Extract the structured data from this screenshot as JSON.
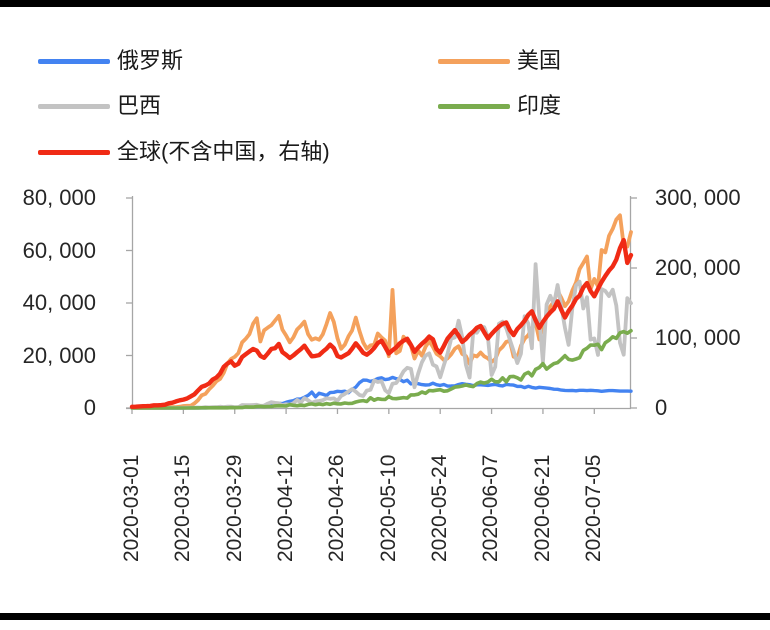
{
  "legend": {
    "items": [
      {
        "label": "俄罗斯",
        "color": "#4383F1"
      },
      {
        "label": "美国",
        "color": "#F4A15C"
      },
      {
        "label": "巴西",
        "color": "#C3C3C3"
      },
      {
        "label": "印度",
        "color": "#7AAC4E"
      },
      {
        "label": "全球(不含中国，右轴)",
        "color": "#F02B15"
      }
    ]
  },
  "chart_data": {
    "type": "line",
    "title": "",
    "grid": false,
    "legend_position": "top-left, two columns",
    "x_start_date": "2020-03-01",
    "x_end_date": "2020-07-15",
    "x_frequency": "daily",
    "x_tick_interval_days": 14,
    "x_tick_labels": [
      "2020-03-01",
      "2020-03-15",
      "2020-03-29",
      "2020-04-12",
      "2020-04-26",
      "2020-05-10",
      "2020-05-24",
      "2020-06-07",
      "2020-06-21",
      "2020-07-05"
    ],
    "y_axis_left": {
      "min": 0,
      "max": 80000,
      "tick_labels": [
        "0",
        "20, 000",
        "40, 000",
        "60, 000",
        "80, 000"
      ]
    },
    "y_axis_right": {
      "min": 0,
      "max": 300000,
      "tick_labels": [
        "0",
        "100, 000",
        "200, 000",
        "300, 000"
      ]
    },
    "series": [
      {
        "name": "俄罗斯",
        "axis": "left",
        "color": "#4383F1",
        "values": [
          0,
          0,
          0,
          3,
          0,
          6,
          5,
          4,
          3,
          9,
          2,
          5,
          14,
          14,
          4,
          30,
          33,
          21,
          52,
          54,
          53,
          61,
          71,
          87,
          120,
          182,
          196,
          228,
          270,
          302,
          501,
          440,
          771,
          601,
          582,
          658,
          954,
          1154,
          1175,
          1459,
          1786,
          1667,
          2186,
          2558,
          2774,
          3388,
          3448,
          4070,
          4785,
          6060,
          4268,
          5642,
          5236,
          4774,
          5849,
          5966,
          6361,
          6198,
          6411,
          5841,
          7099,
          7933,
          9623,
          10633,
          10581,
          10102,
          10559,
          11231,
          11513,
          10817,
          11012,
          11656,
          11157,
          10899,
          10028,
          10598,
          9200,
          9709,
          9263,
          8926,
          8764,
          8849,
          9434,
          8894,
          8599,
          8946,
          8338,
          8371,
          8456,
          8952,
          9268,
          9035,
          8863,
          8536,
          8831,
          8823,
          8726,
          8595,
          8855,
          8985,
          8595,
          8404,
          8987,
          8835,
          8718,
          8246,
          8248,
          7790,
          8248,
          7843,
          7600,
          7889,
          7728,
          7600,
          7425,
          7176,
          7113,
          6800,
          6719,
          6611,
          6693,
          6556,
          6735,
          6760,
          6632,
          6736,
          6611,
          6562,
          6368,
          6509,
          6635,
          6615,
          6537,
          6428,
          6422,
          6428,
          6398
        ]
      },
      {
        "name": "美国",
        "axis": "left",
        "color": "#F4A15C",
        "values": [
          24,
          20,
          14,
          22,
          34,
          74,
          105,
          95,
          121,
          200,
          271,
          287,
          351,
          511,
          777,
          823,
          887,
          1766,
          2988,
          4835,
          5374,
          7123,
          8459,
          10189,
          11075,
          13355,
          16916,
          18691,
          19452,
          20922,
          24998,
          26365,
          28103,
          32105,
          34196,
          25316,
          29595,
          30613,
          31533,
          33323,
          35098,
          29861,
          27620,
          25023,
          26922,
          29917,
          31281,
          32922,
          28123,
          25995,
          26543,
          25985,
          28065,
          31967,
          36188,
          32796,
          26509,
          22541,
          24132,
          27326,
          29517,
          34450,
          29288,
          24972,
          22593,
          23841,
          24128,
          28369,
          26906,
          25621,
          19731,
          45000,
          20848,
          21712,
          27143,
          25508,
          23792,
          18873,
          21841,
          19970,
          23285,
          25434,
          23290,
          20634,
          19680,
          18263,
          18910,
          20461,
          22577,
          23553,
          20568,
          19807,
          16817,
          20087,
          19662,
          21140,
          19699,
          18893,
          17598,
          18577,
          21957,
          23277,
          25214,
          25544,
          19543,
          19029,
          23707,
          26357,
          27762,
          30382,
          32411,
          26079,
          30858,
          34720,
          38672,
          40588,
          44602,
          41990,
          38800,
          40620,
          44734,
          47790,
          52898,
          55220,
          57718,
          45221,
          49199,
          46329,
          60209,
          59260,
          65551,
          68241,
          71800,
          73400,
          62000,
          61500,
          67000
        ]
      },
      {
        "name": "巴西",
        "axis": "left",
        "color": "#C3C3C3",
        "values": [
          0,
          1,
          0,
          1,
          6,
          5,
          6,
          12,
          13,
          25,
          28,
          23,
          50,
          46,
          69,
          98,
          117,
          110,
          179,
          163,
          324,
          235,
          355,
          295,
          486,
          352,
          502,
          487,
          352,
          323,
          1138,
          1119,
          1076,
          1146,
          1222,
          852,
          926,
          1661,
          2210,
          1930,
          1781,
          1089,
          1442,
          1261,
          1832,
          3058,
          2105,
          3735,
          2917,
          1957,
          2498,
          2678,
          2965,
          3711,
          3503,
          3650,
          2760,
          4613,
          5385,
          6276,
          7218,
          6209,
          4970,
          4588,
          6633,
          6935,
          10503,
          9888,
          10222,
          6760,
          5632,
          9258,
          9507,
          11385,
          13944,
          15305,
          14919,
          7938,
          13140,
          17408,
          19951,
          20803,
          16508,
          15813,
          11687,
          16324,
          20599,
          26417,
          26928,
          33274,
          27075,
          16409,
          11598,
          28936,
          28633,
          30925,
          30830,
          27075,
          12581,
          15654,
          32091,
          32913,
          30412,
          25982,
          21704,
          17110,
          20647,
          34918,
          32188,
          22765,
          54771,
          34666,
          17459,
          39436,
          42725,
          39483,
          46860,
          38693,
          30476,
          24052,
          37997,
          46712,
          48105,
          37923,
          42223,
          26051,
          26501,
          20229,
          45305,
          44571,
          42619,
          45048,
          39023,
          24831,
          20286,
          41857,
          39924
        ]
      },
      {
        "name": "印度",
        "axis": "left",
        "color": "#7AAC4E",
        "values": [
          0,
          2,
          3,
          2,
          2,
          1,
          3,
          4,
          6,
          5,
          9,
          14,
          11,
          9,
          13,
          11,
          24,
          26,
          24,
          60,
          73,
          80,
          87,
          102,
          88,
          117,
          75,
          149,
          102,
          146,
          146,
          437,
          336,
          336,
          579,
          609,
          484,
          573,
          565,
          813,
          871,
          854,
          758,
          1243,
          1031,
          886,
          1061,
          922,
          1371,
          1580,
          1239,
          1537,
          1292,
          1667,
          1408,
          1835,
          1607,
          1561,
          1902,
          1702,
          1801,
          2293,
          2644,
          2806,
          2487,
          3900,
          2958,
          3561,
          3320,
          3277,
          4353,
          3604,
          3525,
          3722,
          3967,
          3787,
          4987,
          4987,
          5242,
          6088,
          5609,
          6654,
          6566,
          6767,
          6977,
          6414,
          6535,
          7246,
          7964,
          8105,
          8380,
          8789,
          8392,
          8171,
          9304,
          9851,
          9471,
          9887,
          10956,
          9983,
          9985,
          11458,
          9996,
          11929,
          12031,
          11502,
          10667,
          12881,
          13586,
          12281,
          14721,
          15413,
          16922,
          14821,
          15968,
          16922,
          17296,
          18552,
          19906,
          18522,
          18256,
          18653,
          19148,
          21947,
          22771,
          24018,
          23942,
          24248,
          22252,
          24879,
          25790,
          27114,
          26506,
          28637,
          29108,
          28498,
          29429
        ]
      },
      {
        "name": "全球(不含中国，右轴)",
        "axis": "right",
        "color": "#F02B15",
        "values": [
          1729,
          1896,
          2254,
          2585,
          2722,
          3069,
          3905,
          3912,
          4133,
          4743,
          6697,
          7512,
          9412,
          10993,
          11972,
          13628,
          16598,
          19560,
          24976,
          30279,
          32110,
          34963,
          40764,
          43575,
          49168,
          58747,
          63455,
          66596,
          60462,
          63210,
          72843,
          76682,
          80683,
          84287,
          81998,
          74403,
          71784,
          77819,
          84497,
          85474,
          91561,
          79906,
          76014,
          71434,
          75098,
          79716,
          83981,
          89042,
          81111,
          73920,
          74493,
          75541,
          80387,
          84663,
          90622,
          85507,
          74191,
          72343,
          75217,
          78252,
          84771,
          92476,
          86023,
          78908,
          76187,
          80183,
          85738,
          92790,
          95948,
          87212,
          77918,
          82618,
          86568,
          92304,
          96166,
          98876,
          90180,
          80218,
          86416,
          91718,
          96099,
          102067,
          98192,
          84211,
          78970,
          88689,
          99071,
          105227,
          111322,
          103397,
          94372,
          98655,
          104757,
          109030,
          114747,
          117186,
          108184,
          99500,
          105773,
          111216,
          116292,
          120275,
          122210,
          111190,
          104163,
          112837,
          118150,
          124542,
          133151,
          138120,
          125362,
          114552,
          122797,
          130394,
          136509,
          141599,
          152500,
          140107,
          129244,
          138715,
          146169,
          155827,
          160500,
          172115,
          178374,
          166972,
          159558,
          170154,
          180169,
          188544,
          196275,
          202300,
          212000,
          228500,
          239800,
          207300,
          218400
        ]
      }
    ]
  }
}
